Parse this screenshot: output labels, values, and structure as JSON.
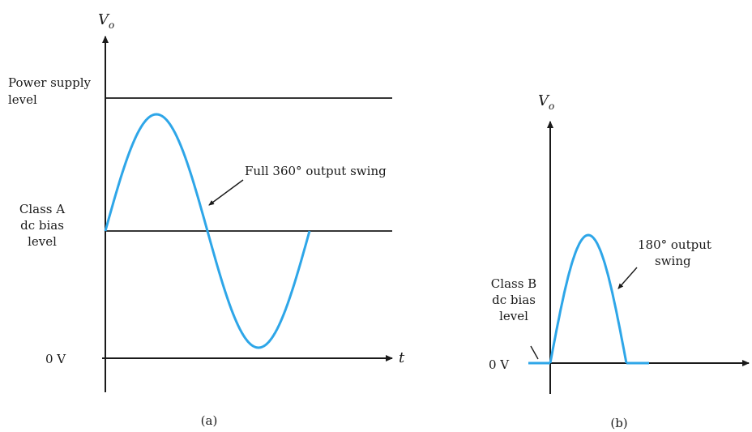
{
  "figure_a": {
    "axis_label_y": "V",
    "axis_label_y_sub": "o",
    "axis_label_x": "t",
    "power_supply_label_line1": "Power supply",
    "power_supply_label_line2": "level",
    "bias_label_line1": "Class A",
    "bias_label_line2": "dc bias",
    "bias_label_line3": "level",
    "zero_label": "0 V",
    "swing_annotation": "Full 360° output swing",
    "caption": "(a)"
  },
  "figure_b": {
    "axis_label_y": "V",
    "axis_label_y_sub": "o",
    "bias_label_line1": "Class B",
    "bias_label_line2": "dc bias",
    "bias_label_line3": "level",
    "zero_label": "0 V",
    "swing_annotation_line1": "180° output",
    "swing_annotation_line2": "swing",
    "caption": "(b)"
  },
  "colors": {
    "waveform": "#2ea6e8",
    "axes": "#1a1a1a"
  }
}
